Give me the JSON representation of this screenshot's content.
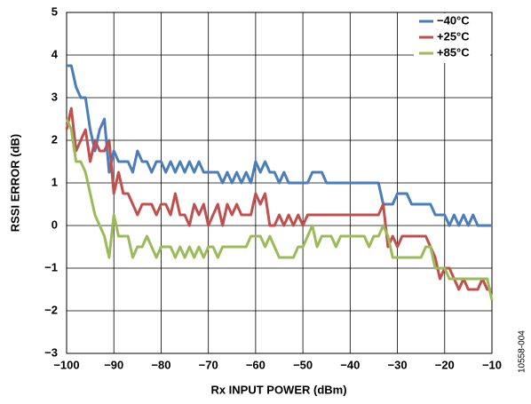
{
  "chart_data": {
    "type": "line",
    "xlabel": "Rx INPUT POWER (dBm)",
    "ylabel": "RSSI ERROR (dB)",
    "side_note": "10558-004",
    "x": [
      -100,
      -99,
      -98,
      -97,
      -96,
      -95,
      -94,
      -93,
      -92,
      -91,
      -90,
      -89,
      -88,
      -87,
      -86,
      -85,
      -84,
      -83,
      -82,
      -81,
      -80,
      -79,
      -78,
      -77,
      -76,
      -75,
      -74,
      -73,
      -72,
      -71,
      -70,
      -69,
      -68,
      -67,
      -66,
      -65,
      -64,
      -63,
      -62,
      -61,
      -60,
      -59,
      -58,
      -57,
      -56,
      -55,
      -54,
      -53,
      -52,
      -51,
      -50,
      -49,
      -48,
      -47,
      -46,
      -45,
      -44,
      -43,
      -42,
      -41,
      -40,
      -39,
      -38,
      -37,
      -36,
      -35,
      -34,
      -33,
      -32,
      -31,
      -30,
      -29,
      -28,
      -27,
      -26,
      -25,
      -24,
      -23,
      -22,
      -21,
      -20,
      -19,
      -18,
      -17,
      -16,
      -15,
      -14,
      -13,
      -12,
      -11,
      -10
    ],
    "series": [
      {
        "name": "−40°C",
        "color": "#4a7ebb",
        "values": [
          3.75,
          3.75,
          3.25,
          3.0,
          3.0,
          2.25,
          1.75,
          2.25,
          2.5,
          1.25,
          1.75,
          1.5,
          1.5,
          1.5,
          1.25,
          1.75,
          1.5,
          1.5,
          1.25,
          1.5,
          1.5,
          1.25,
          1.5,
          1.25,
          1.5,
          1.25,
          1.5,
          1.25,
          1.5,
          1.25,
          1.25,
          1.25,
          1.25,
          1.0,
          1.25,
          1.0,
          1.25,
          1.0,
          1.25,
          1.0,
          1.5,
          1.25,
          1.5,
          1.25,
          1.25,
          1.0,
          1.25,
          1.0,
          1.0,
          1.0,
          1.0,
          1.0,
          1.25,
          1.25,
          1.25,
          1.0,
          1.0,
          1.0,
          1.0,
          1.0,
          1.0,
          1.0,
          1.0,
          1.0,
          1.0,
          1.0,
          1.0,
          0.5,
          0.5,
          0.5,
          0.75,
          0.75,
          0.75,
          0.5,
          0.5,
          0.5,
          0.5,
          0.5,
          0.25,
          0.25,
          0.25,
          0.0,
          0.25,
          0.0,
          0.25,
          0.0,
          0.25,
          0.0,
          0.0,
          0.0,
          0.0
        ]
      },
      {
        "name": "+25°C",
        "color": "#c0504d",
        "values": [
          2.25,
          2.75,
          1.75,
          2.0,
          2.25,
          1.5,
          2.0,
          1.75,
          1.75,
          2.0,
          0.75,
          1.25,
          0.75,
          0.75,
          0.5,
          0.25,
          0.5,
          0.5,
          0.5,
          0.25,
          0.5,
          0.5,
          0.25,
          0.75,
          0.25,
          0.25,
          0.0,
          0.5,
          0.25,
          0.5,
          0.0,
          0.25,
          0.5,
          0.0,
          0.5,
          0.25,
          0.5,
          0.25,
          0.25,
          0.25,
          0.75,
          0.5,
          0.75,
          0.0,
          0.0,
          0.25,
          0.0,
          0.25,
          0.0,
          0.25,
          0.0,
          0.25,
          0.25,
          0.25,
          0.25,
          0.25,
          0.25,
          0.25,
          0.25,
          0.25,
          0.25,
          0.25,
          0.25,
          0.25,
          0.25,
          0.25,
          0.25,
          0.5,
          -0.5,
          -0.25,
          -0.5,
          -0.25,
          -0.25,
          -0.25,
          -0.25,
          -0.25,
          -0.25,
          -0.5,
          -0.75,
          -1.25,
          -1.0,
          -1.0,
          -1.25,
          -1.5,
          -1.25,
          -1.5,
          -1.5,
          -1.5,
          -1.25,
          -1.5,
          -1.5
        ]
      },
      {
        "name": "+85°C",
        "color": "#9bbb59",
        "values": [
          2.5,
          2.25,
          1.5,
          1.5,
          1.25,
          0.75,
          0.25,
          0.0,
          -0.25,
          -0.75,
          0.25,
          -0.25,
          -0.25,
          -0.25,
          -0.75,
          -0.5,
          -0.5,
          -0.25,
          -0.5,
          -0.75,
          -0.5,
          -0.5,
          -0.5,
          -0.75,
          -0.5,
          -0.75,
          -0.5,
          -0.75,
          -0.5,
          -0.75,
          -0.5,
          -0.5,
          -0.75,
          -0.5,
          -0.5,
          -0.5,
          -0.5,
          -0.5,
          -0.5,
          -0.25,
          -0.25,
          -0.25,
          -0.5,
          -0.25,
          -0.5,
          -0.75,
          -0.75,
          -0.75,
          -0.75,
          -0.5,
          -0.5,
          -0.25,
          0.0,
          -0.5,
          -0.25,
          -0.25,
          -0.25,
          -0.5,
          -0.25,
          -0.25,
          -0.25,
          -0.25,
          -0.25,
          -0.25,
          -0.5,
          -0.25,
          -0.25,
          0.0,
          -0.25,
          -0.75,
          -0.75,
          -0.75,
          -0.75,
          -0.75,
          -0.75,
          -0.75,
          -0.5,
          -0.5,
          -1.0,
          -1.0,
          -1.0,
          -1.25,
          -1.25,
          -1.25,
          -1.25,
          -1.25,
          -1.25,
          -1.25,
          -1.25,
          -1.25,
          -1.75
        ]
      }
    ],
    "xlim": [
      -100,
      -10
    ],
    "xticks": [
      {
        "value": -100,
        "label": "−100"
      },
      {
        "value": -90,
        "label": "−90"
      },
      {
        "value": -80,
        "label": "−80"
      },
      {
        "value": -70,
        "label": "−70"
      },
      {
        "value": -60,
        "label": "−60"
      },
      {
        "value": -50,
        "label": "−50"
      },
      {
        "value": -40,
        "label": "−40"
      },
      {
        "value": -30,
        "label": "−30"
      },
      {
        "value": -20,
        "label": "−20"
      },
      {
        "value": -10,
        "label": "−10"
      }
    ],
    "ylim": [
      -3,
      5
    ],
    "yticks": [
      {
        "value": -3,
        "label": "−3"
      },
      {
        "value": -2,
        "label": "−2"
      },
      {
        "value": -1,
        "label": "−1"
      },
      0,
      1,
      2,
      3,
      4,
      5
    ],
    "grid": true,
    "legend": "upper right"
  }
}
